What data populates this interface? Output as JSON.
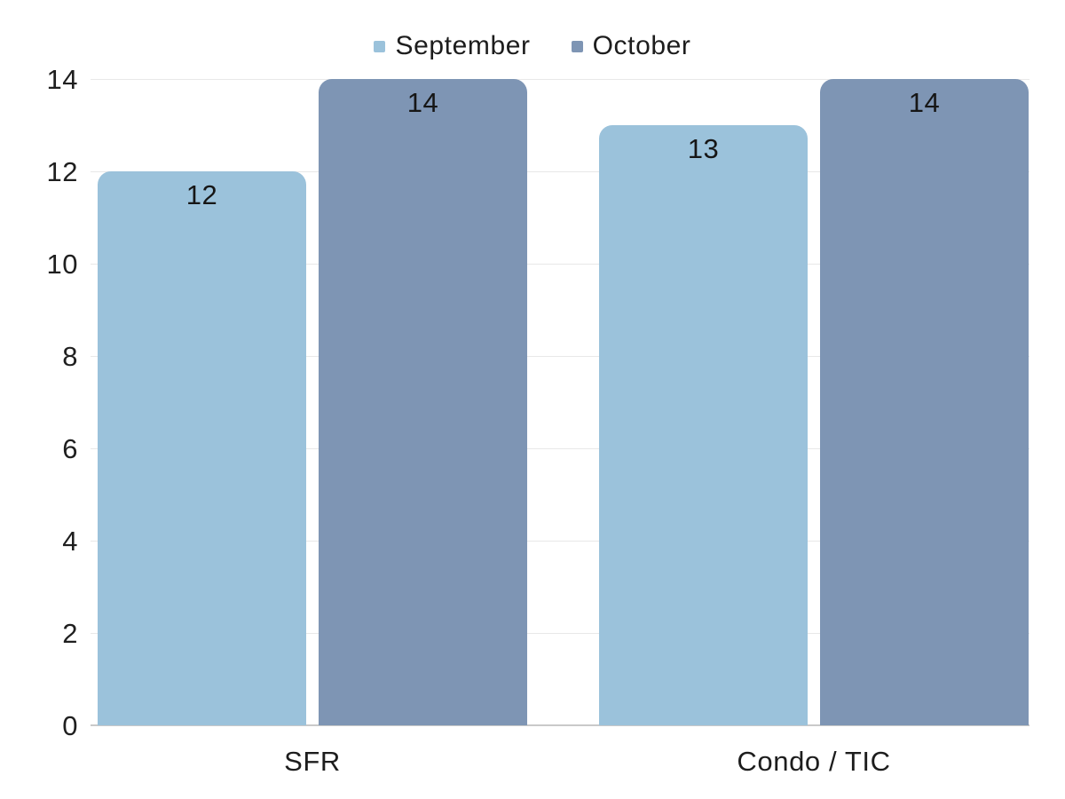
{
  "chart_data": {
    "type": "bar",
    "title": "",
    "categories": [
      "SFR",
      "Condo / TIC"
    ],
    "series": [
      {
        "name": "September",
        "color": "#9BC2DB",
        "values": [
          12,
          13
        ]
      },
      {
        "name": "October",
        "color": "#7E95B4",
        "values": [
          14,
          14
        ]
      }
    ],
    "y_ticks": [
      0,
      2,
      4,
      6,
      8,
      10,
      12,
      14
    ],
    "ylim": [
      0,
      14
    ],
    "grid": true,
    "legend_position": "top-center",
    "bar_value_labels": [
      [
        12,
        13
      ],
      [
        14,
        14
      ]
    ]
  },
  "colors": {
    "grid": "#e8e8e8",
    "axis_line": "#c9c9c9",
    "text": "#1d1d1d"
  }
}
